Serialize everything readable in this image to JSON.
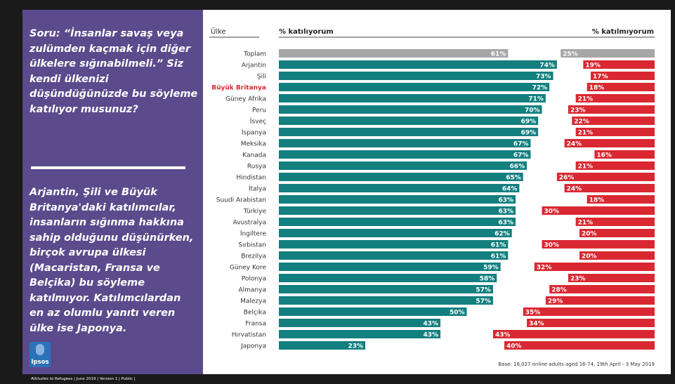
{
  "question": "Soru: “İnsanlar savaş veya zulümden kaçmak için diğer ülkelere sığınabilmeli.” Siz kendi ülkenizi düşündüğünüzde bu söyleme katılıyor musunuz?",
  "summary": "Arjantin, Şili ve Büyük Britanya'daki katılımcılar, insanların sığınma hakkına sahip olduğunu düşünürken, birçok avrupa ülkesi (Macaristan, Fransa ve Belçika) bu söyleme katılmıyor. Katılımcılardan en az olumlu yanıtı veren ülke ise Japonya.",
  "logo_text": "Ipsos",
  "footer": "Attitudes to Refugees | June 2019 | Version 1 | Public |",
  "base_note": "Base: 18,027 online adults aged 16-74, 19th April - 3 May 2019",
  "colors": {
    "agree": "#137f7f",
    "disagree": "#da2832",
    "total": "#a6a6a6",
    "highlight": "#da2832"
  },
  "chart_data": {
    "type": "bar",
    "orientation": "horizontal-diverging",
    "header_country": "Ülke",
    "header_agree": "% katılıyorum",
    "header_disagree": "% katılmıyorum",
    "highlight_category": "Büyük Britanya",
    "categories": [
      "Toplam",
      "Arjantin",
      "Şili",
      "Büyük Britanya",
      "Güney Afrika",
      "Peru",
      "İsveç",
      "İspanya",
      "Meksika",
      "Kanada",
      "Rusya",
      "Hindistan",
      "İtalya",
      "Suudi Arabistan",
      "Türkiye",
      "Avustralya",
      "İngiltere",
      "Sırbistan",
      "Brezilya",
      "Güney Kore",
      "Polonya",
      "Almanya",
      "Malezya",
      "Belçika",
      "Fransa",
      "Hırvatistan",
      "Japonya"
    ],
    "series": [
      {
        "name": "% katılıyorum",
        "values": [
          61,
          74,
          73,
          72,
          71,
          70,
          69,
          69,
          67,
          67,
          66,
          65,
          64,
          63,
          63,
          63,
          62,
          61,
          61,
          59,
          58,
          57,
          57,
          50,
          43,
          43,
          23
        ]
      },
      {
        "name": "% katılmıyorum",
        "values": [
          25,
          19,
          17,
          18,
          21,
          23,
          22,
          21,
          24,
          16,
          21,
          26,
          24,
          18,
          30,
          21,
          20,
          30,
          20,
          32,
          23,
          28,
          29,
          35,
          34,
          43,
          40
        ]
      }
    ],
    "xlim": [
      0,
      100
    ]
  }
}
